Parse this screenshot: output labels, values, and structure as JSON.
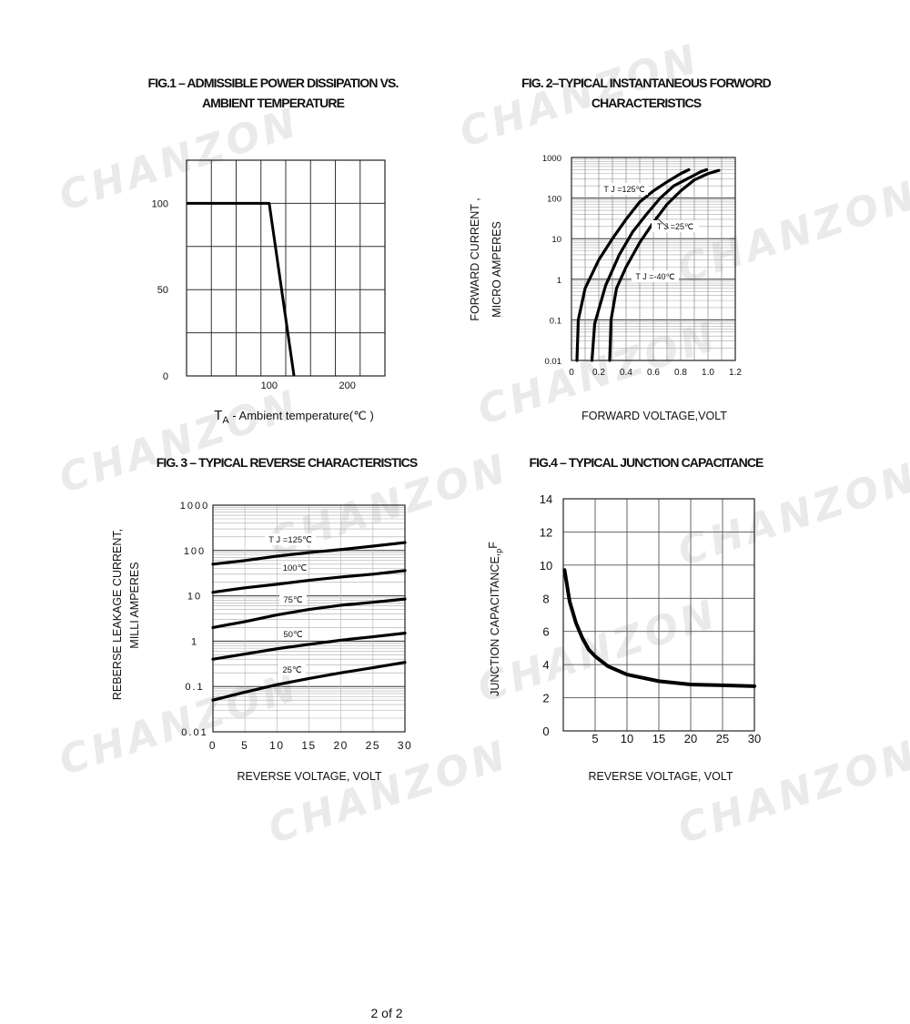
{
  "watermark": "CHANZON",
  "footer": {
    "page": "2 of 2"
  },
  "chart_data": [
    {
      "id": "fig1",
      "type": "line",
      "title": "FIG.1 – ADMISSIBLE POWER DISSIPATION VS. AMBIENT TEMPERATURE",
      "xlabel_main": "T",
      "xlabel_sub": "A",
      "xlabel_rest": " - Ambient  temperature(℃ )",
      "ylabel": "",
      "xlim": [
        0,
        240
      ],
      "ylim": [
        0,
        125
      ],
      "xticks": [
        "100",
        "200"
      ],
      "yticks": [
        "0",
        "50",
        "100"
      ],
      "grid": true,
      "series": [
        {
          "points": [
            [
              0,
              100
            ],
            [
              100,
              100
            ],
            [
              130,
              0
            ]
          ]
        }
      ]
    },
    {
      "id": "fig2",
      "type": "line",
      "title": "FIG. 2–TYPICAL INSTANTANEOUS FORWORD CHARACTERISTICS",
      "xlabel": "FORWARD VOLTAGE,VOLT",
      "ylabel_line1": "FORWARD CURRENT ,",
      "ylabel_line2": "MICRO AMPERES",
      "yscale": "log",
      "xlim": [
        0,
        1.2
      ],
      "ylim": [
        0.01,
        1000
      ],
      "xticks": [
        "0",
        "0.2",
        "0.4",
        "0.6",
        "0.8",
        "1.0",
        "1.2"
      ],
      "yticks": [
        "0.01",
        "0.1",
        "1",
        "10",
        "100",
        "1000"
      ],
      "grid": true,
      "series": [
        {
          "label": "T J =125℃",
          "points": [
            [
              0.04,
              0.01
            ],
            [
              0.05,
              0.1
            ],
            [
              0.1,
              0.6
            ],
            [
              0.2,
              3
            ],
            [
              0.3,
              10
            ],
            [
              0.4,
              30
            ],
            [
              0.5,
              80
            ],
            [
              0.6,
              150
            ],
            [
              0.7,
              250
            ],
            [
              0.8,
              400
            ],
            [
              0.86,
              500
            ]
          ]
        },
        {
          "label": "T J =25℃",
          "points": [
            [
              0.15,
              0.01
            ],
            [
              0.17,
              0.08
            ],
            [
              0.25,
              0.7
            ],
            [
              0.35,
              4
            ],
            [
              0.45,
              15
            ],
            [
              0.55,
              40
            ],
            [
              0.65,
              100
            ],
            [
              0.75,
              200
            ],
            [
              0.85,
              300
            ],
            [
              0.95,
              450
            ],
            [
              0.99,
              500
            ]
          ]
        },
        {
          "label": "T J =-40℃",
          "points": [
            [
              0.28,
              0.01
            ],
            [
              0.29,
              0.1
            ],
            [
              0.33,
              0.6
            ],
            [
              0.4,
              2
            ],
            [
              0.5,
              8
            ],
            [
              0.6,
              25
            ],
            [
              0.7,
              70
            ],
            [
              0.8,
              150
            ],
            [
              0.9,
              280
            ],
            [
              1.0,
              400
            ],
            [
              1.08,
              480
            ]
          ]
        }
      ]
    },
    {
      "id": "fig3",
      "type": "line",
      "title": "FIG. 3 – TYPICAL REVERSE CHARACTERISTICS",
      "xlabel": "REVERSE VOLTAGE, VOLT",
      "ylabel_line1": "REBERSE LEAKAGE CURRENT,",
      "ylabel_line2": "MILLI AMPERES",
      "yscale": "log",
      "xlim": [
        0,
        30
      ],
      "ylim": [
        0.01,
        1000
      ],
      "xticks": [
        "0",
        "5",
        "10",
        "15",
        "20",
        "25",
        "30"
      ],
      "yticks": [
        "0.01",
        "0.1",
        "1",
        "10",
        "100",
        "1000"
      ],
      "grid": true,
      "series": [
        {
          "label": "T J =125℃",
          "points": [
            [
              0,
              50
            ],
            [
              5,
              60
            ],
            [
              10,
              75
            ],
            [
              15,
              90
            ],
            [
              20,
              105
            ],
            [
              25,
              125
            ],
            [
              30,
              150
            ]
          ]
        },
        {
          "label": "100℃",
          "points": [
            [
              0,
              12
            ],
            [
              5,
              15
            ],
            [
              10,
              18
            ],
            [
              15,
              22
            ],
            [
              20,
              26
            ],
            [
              25,
              30
            ],
            [
              30,
              36
            ]
          ]
        },
        {
          "label": "75℃",
          "points": [
            [
              0,
              2
            ],
            [
              5,
              2.7
            ],
            [
              10,
              3.8
            ],
            [
              15,
              5
            ],
            [
              20,
              6.2
            ],
            [
              25,
              7.2
            ],
            [
              30,
              8.5
            ]
          ]
        },
        {
          "label": "50℃",
          "points": [
            [
              0,
              0.4
            ],
            [
              5,
              0.52
            ],
            [
              10,
              0.68
            ],
            [
              15,
              0.85
            ],
            [
              20,
              1.05
            ],
            [
              25,
              1.25
            ],
            [
              30,
              1.5
            ]
          ]
        },
        {
          "label": "25℃",
          "points": [
            [
              0,
              0.05
            ],
            [
              5,
              0.075
            ],
            [
              10,
              0.11
            ],
            [
              15,
              0.15
            ],
            [
              20,
              0.2
            ],
            [
              25,
              0.26
            ],
            [
              30,
              0.34
            ]
          ]
        }
      ]
    },
    {
      "id": "fig4",
      "type": "line",
      "title": "FIG.4 – TYPICAL JUNCTION CAPACITANCE",
      "xlabel": "REVERSE VOLTAGE, VOLT",
      "ylabel_main": "JUNCTION CAPACITANCE,",
      "ylabel_sub": "p",
      "ylabel_end": "F",
      "xlim": [
        0,
        30
      ],
      "ylim": [
        0,
        14
      ],
      "xticks": [
        "5",
        "10",
        "15",
        "20",
        "25",
        "30"
      ],
      "yticks": [
        "0",
        "2",
        "4",
        "6",
        "8",
        "10",
        "12",
        "14"
      ],
      "grid": true,
      "series": [
        {
          "points": [
            [
              0.2,
              9.7
            ],
            [
              1,
              7.8
            ],
            [
              2,
              6.5
            ],
            [
              3,
              5.6
            ],
            [
              4,
              4.9
            ],
            [
              5,
              4.5
            ],
            [
              7,
              3.9
            ],
            [
              10,
              3.4
            ],
            [
              15,
              3.0
            ],
            [
              20,
              2.8
            ],
            [
              25,
              2.75
            ],
            [
              30,
              2.7
            ]
          ]
        }
      ]
    }
  ]
}
